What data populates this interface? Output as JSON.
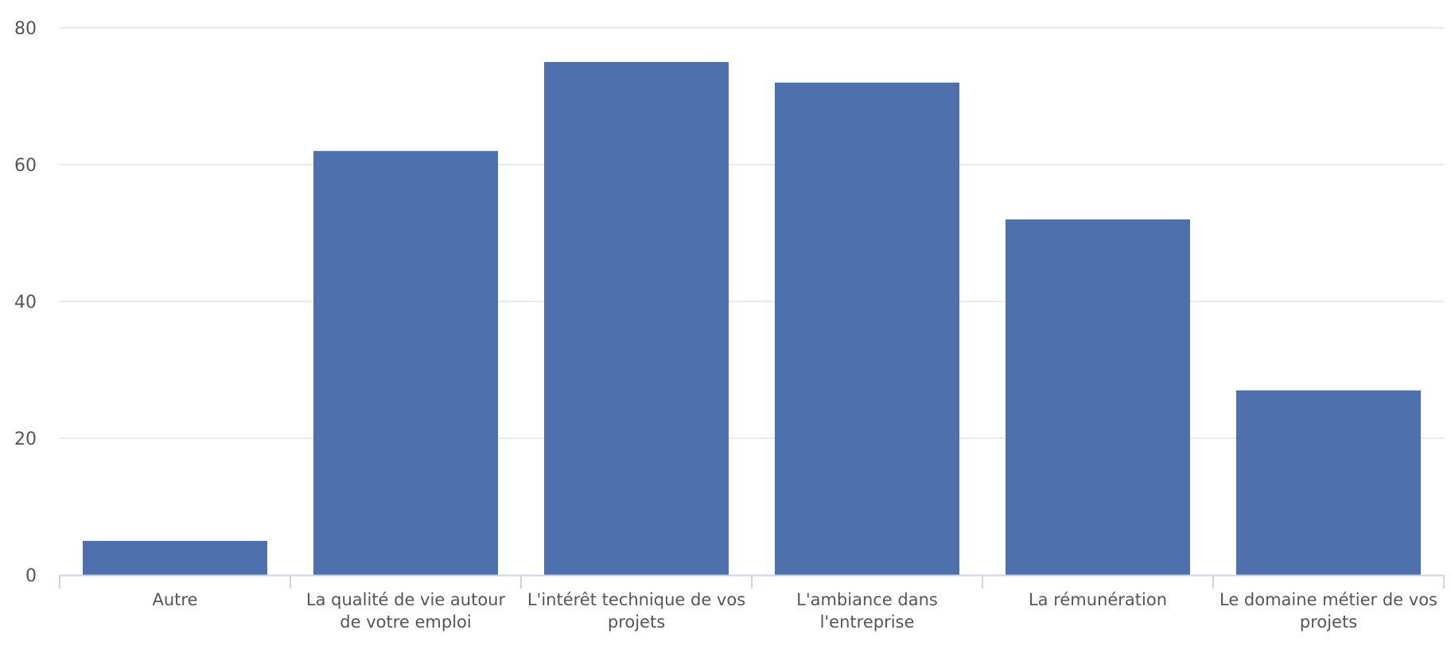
{
  "chart_data": {
    "type": "bar",
    "title": "",
    "xlabel": "",
    "ylabel": "",
    "categories": [
      [
        "Autre"
      ],
      [
        "La qualité de vie autour",
        "de votre emploi"
      ],
      [
        "L'intérêt technique de vos",
        "projets"
      ],
      [
        "L'ambiance dans",
        "l'entreprise"
      ],
      [
        "La rémunération"
      ],
      [
        "Le domaine métier de vos",
        "projets"
      ]
    ],
    "values": [
      5,
      62,
      75,
      72,
      52,
      27
    ],
    "ylim": [
      0,
      80
    ],
    "yticks": [
      0,
      20,
      40,
      60,
      80
    ],
    "grid": true,
    "legend": "none",
    "colors": {
      "bar": "#4e71ae",
      "grid": "#e3e3e8",
      "axis": "#ccd6eb",
      "text": "#555555"
    }
  }
}
